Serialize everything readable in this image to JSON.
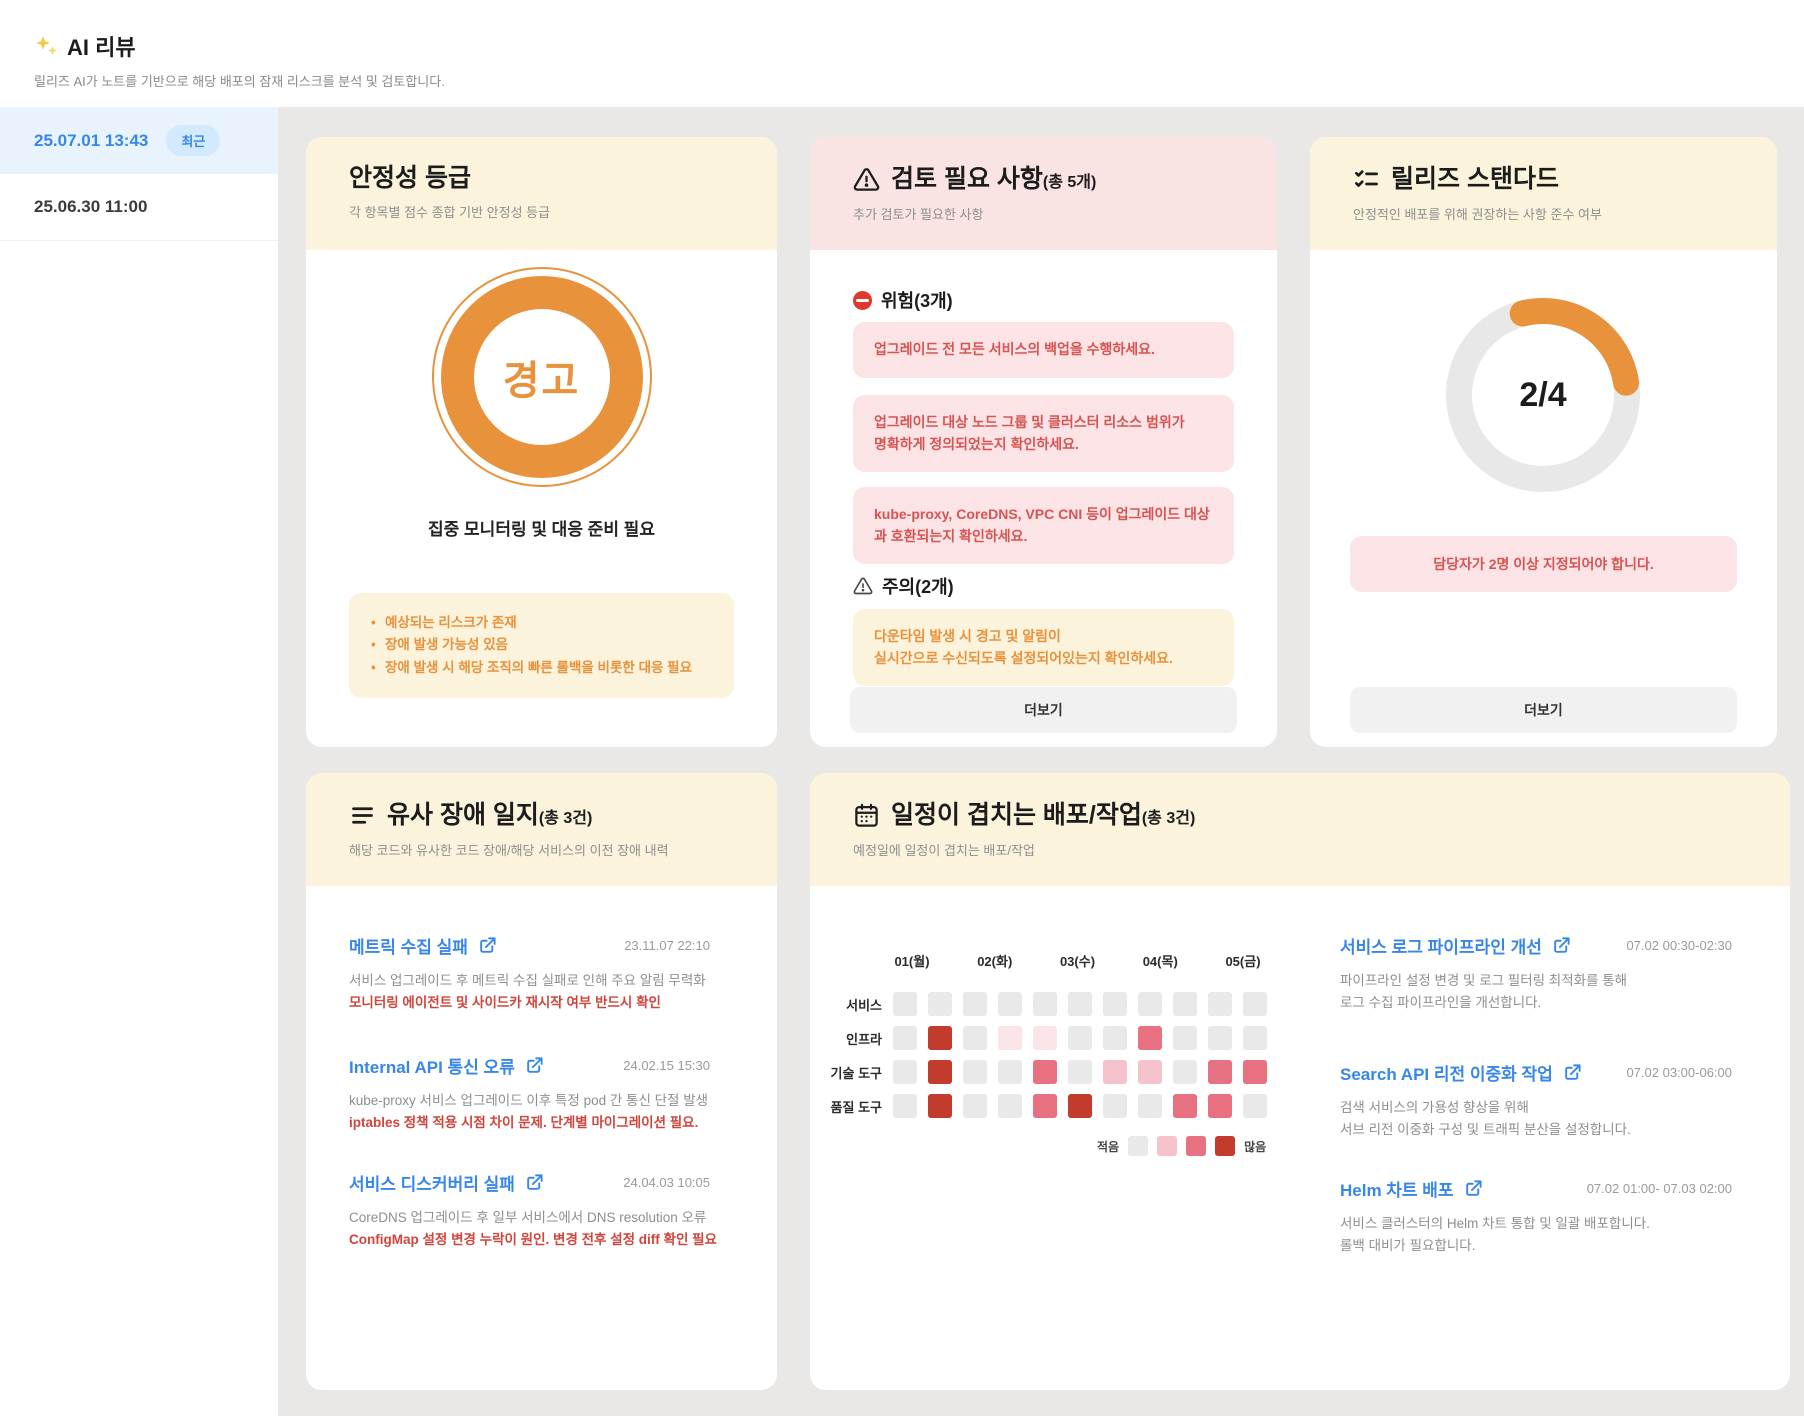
{
  "page": {
    "title": "AI 리뷰",
    "subtitle": "릴리즈 AI가 노트를 기반으로 해당 배포의 잠재 리스크를 분석 및 검토합니다."
  },
  "sidebar": {
    "items": [
      {
        "date": "25.07.01 13:43",
        "badge": "최근"
      },
      {
        "date": "25.06.30 11:00"
      }
    ]
  },
  "cards": {
    "stability": {
      "title": "안정성 등급",
      "subtitle": "각 항목별 점수 종합 기반 안정성 등급",
      "grade": "경고",
      "status": "집중 모니터링 및 대응 준비 필요",
      "notes": [
        "예상되는 리스크가 존재",
        "장애 발생 가능성 있음",
        "장애 발생 시 해당 조직의 빠른 롤백을 비롯한 대응 필요"
      ]
    },
    "review": {
      "title": "검토 필요 사항",
      "count": "(총 5개)",
      "subtitle": "추가 검토가 필요한 사항",
      "danger_label": "위험(3개)",
      "danger_items": [
        "업그레이드 전 모든 서비스의 백업을 수행하세요.",
        "업그레이드 대상 노드 그룹 및 클러스터 리소스 범위가\n명확하게 정의되었는지 확인하세요.",
        "kube-proxy, CoreDNS, VPC CNI 등이 업그레이드 대상\n과 호환되는지 확인하세요."
      ],
      "caution_label": "주의(2개)",
      "caution_items": [
        "다운타임 발생 시 경고 및 알림이\n실시간으로 수신되도록 설정되어있는지 확인하세요."
      ],
      "more_label": "더보기"
    },
    "standard": {
      "title": "릴리즈 스탠다드",
      "subtitle": "안정적인 배포를 위해 권장하는 사항 준수 여부",
      "score": "2/4",
      "alert": "담당자가 2명 이상 지정되어야 합니다.",
      "more_label": "더보기"
    },
    "incidents": {
      "title": "유사 장애 일지",
      "count": "(총 3건)",
      "subtitle": "해당 코드와 유사한 코드 장애/해당 서비스의 이전 장애 내력",
      "items": [
        {
          "title": "메트릭 수집 실패",
          "time": "23.11.07 22:10",
          "desc": "서비스 업그레이드 후 메트릭 수집 실패로 인해 주요 알림 무력화",
          "highlight": "모니터링 에이전트 및 사이드카 재시작 여부 반드시 확인"
        },
        {
          "title": "Internal API 통신 오류",
          "time": "24.02.15 15:30",
          "desc": "kube-proxy 서비스 업그레이드 이후 특정 pod 간 통신 단절 발생",
          "highlight": "iptables 정책 적용 시점 차이 문제. 단계별 마이그레이션 필요."
        },
        {
          "title": "서비스 디스커버리 실패",
          "time": "24.04.03 10:05",
          "desc": "CoreDNS 업그레이드 후 일부 서비스에서 DNS resolution 오류",
          "highlight": "ConfigMap 설정 변경 누락이 원인. 변경 전후 설정 diff 확인 필요"
        }
      ]
    },
    "schedule": {
      "title": "일정이 겹치는 배포/작업",
      "count": "(총 3건)",
      "subtitle": "예정일에 일정이 겹치는 배포/작업",
      "heatmap": {
        "days": [
          "01(월)",
          "02(화)",
          "03(수)",
          "04(목)",
          "05(금)"
        ],
        "rows": [
          "서비스",
          "인프라",
          "기술 도구",
          "품질 도구"
        ],
        "levels": [
          [
            0,
            0,
            0,
            0,
            0,
            0,
            0,
            0,
            0,
            0,
            0
          ],
          [
            0,
            4,
            0,
            1,
            1,
            0,
            0,
            3,
            0,
            0,
            0
          ],
          [
            0,
            4,
            0,
            0,
            3,
            0,
            2,
            2,
            0,
            3,
            3
          ],
          [
            0,
            4,
            0,
            0,
            3,
            4,
            0,
            0,
            3,
            3,
            0
          ]
        ],
        "level_colors": [
          "#E9E9E9",
          "#FAE4E7",
          "#F4C3CC",
          "#E87181",
          "#C23B2C"
        ],
        "legend": {
          "low": "적음",
          "high": "많음",
          "swatch_levels": [
            0,
            2,
            3,
            4
          ]
        }
      },
      "items": [
        {
          "title": "서비스 로그 파이프라인 개선",
          "time": "07.02 00:30-02:30",
          "desc": "파이프라인 설정 변경 및 로그 필터링 최적화를 통해\n로그 수집 파이프라인을 개선합니다."
        },
        {
          "title": "Search API 리전 이중화 작업",
          "time": "07.02 03:00-06:00",
          "desc": "검색 서비스의 가용성 향상을 위해\n서브 리전 이중화 구성 및 트래픽 분산을 설정합니다."
        },
        {
          "title": "Helm 차트 배포",
          "time": "07.02 01:00- 07.03 02:00",
          "desc": "서비스 클러스터의 Helm 차트 통합 및 일괄 배포합니다.\n롤백 대비가 필요합니다."
        }
      ]
    }
  },
  "colors": {
    "accent_blue": "#3787E8",
    "selected_bg": "#E8F3FE",
    "badge_bg": "#D3E9FD",
    "warning_orange": "#E8923C",
    "cream_bg": "#FBF3DC",
    "pink_bg": "#FAE3E3",
    "danger_box_bg": "#FBE3E6",
    "danger_red": "#D65552",
    "highlight_red": "#D0453C",
    "donut_track": "#E8E8E8"
  },
  "icons": {
    "header": "sparkles-icon",
    "review": "warning-triangle-icon",
    "danger": "no-entry-icon",
    "caution": "caution-triangle-icon",
    "standard": "checklist-icon",
    "incidents": "list-icon",
    "schedule": "calendar-icon",
    "links": "external-link-icon"
  },
  "chart_data": [
    {
      "type": "donut",
      "title": "릴리즈 스탠다드",
      "value": 2,
      "total": 4,
      "label": "2/4",
      "color": "#E8923C",
      "track_color": "#E8E8E8"
    },
    {
      "type": "heatmap",
      "title": "일정이 겹치는 배포/작업(총 3건)",
      "x": [
        "01(월)",
        "02(화)",
        "03(수)",
        "04(목)",
        "05(금)"
      ],
      "y": [
        "서비스",
        "인프라",
        "기술 도구",
        "품질 도구"
      ],
      "levels": [
        [
          0,
          0,
          0,
          0,
          0,
          0,
          0,
          0,
          0,
          0,
          0
        ],
        [
          0,
          4,
          0,
          1,
          1,
          0,
          0,
          3,
          0,
          0,
          0
        ],
        [
          0,
          4,
          0,
          0,
          3,
          0,
          2,
          2,
          0,
          3,
          3
        ],
        [
          0,
          4,
          0,
          0,
          3,
          4,
          0,
          0,
          3,
          3,
          0
        ]
      ],
      "palette": [
        "#E9E9E9",
        "#FAE4E7",
        "#F4C3CC",
        "#E87181",
        "#C23B2C"
      ],
      "legend": [
        "적음",
        "많음"
      ]
    }
  ]
}
